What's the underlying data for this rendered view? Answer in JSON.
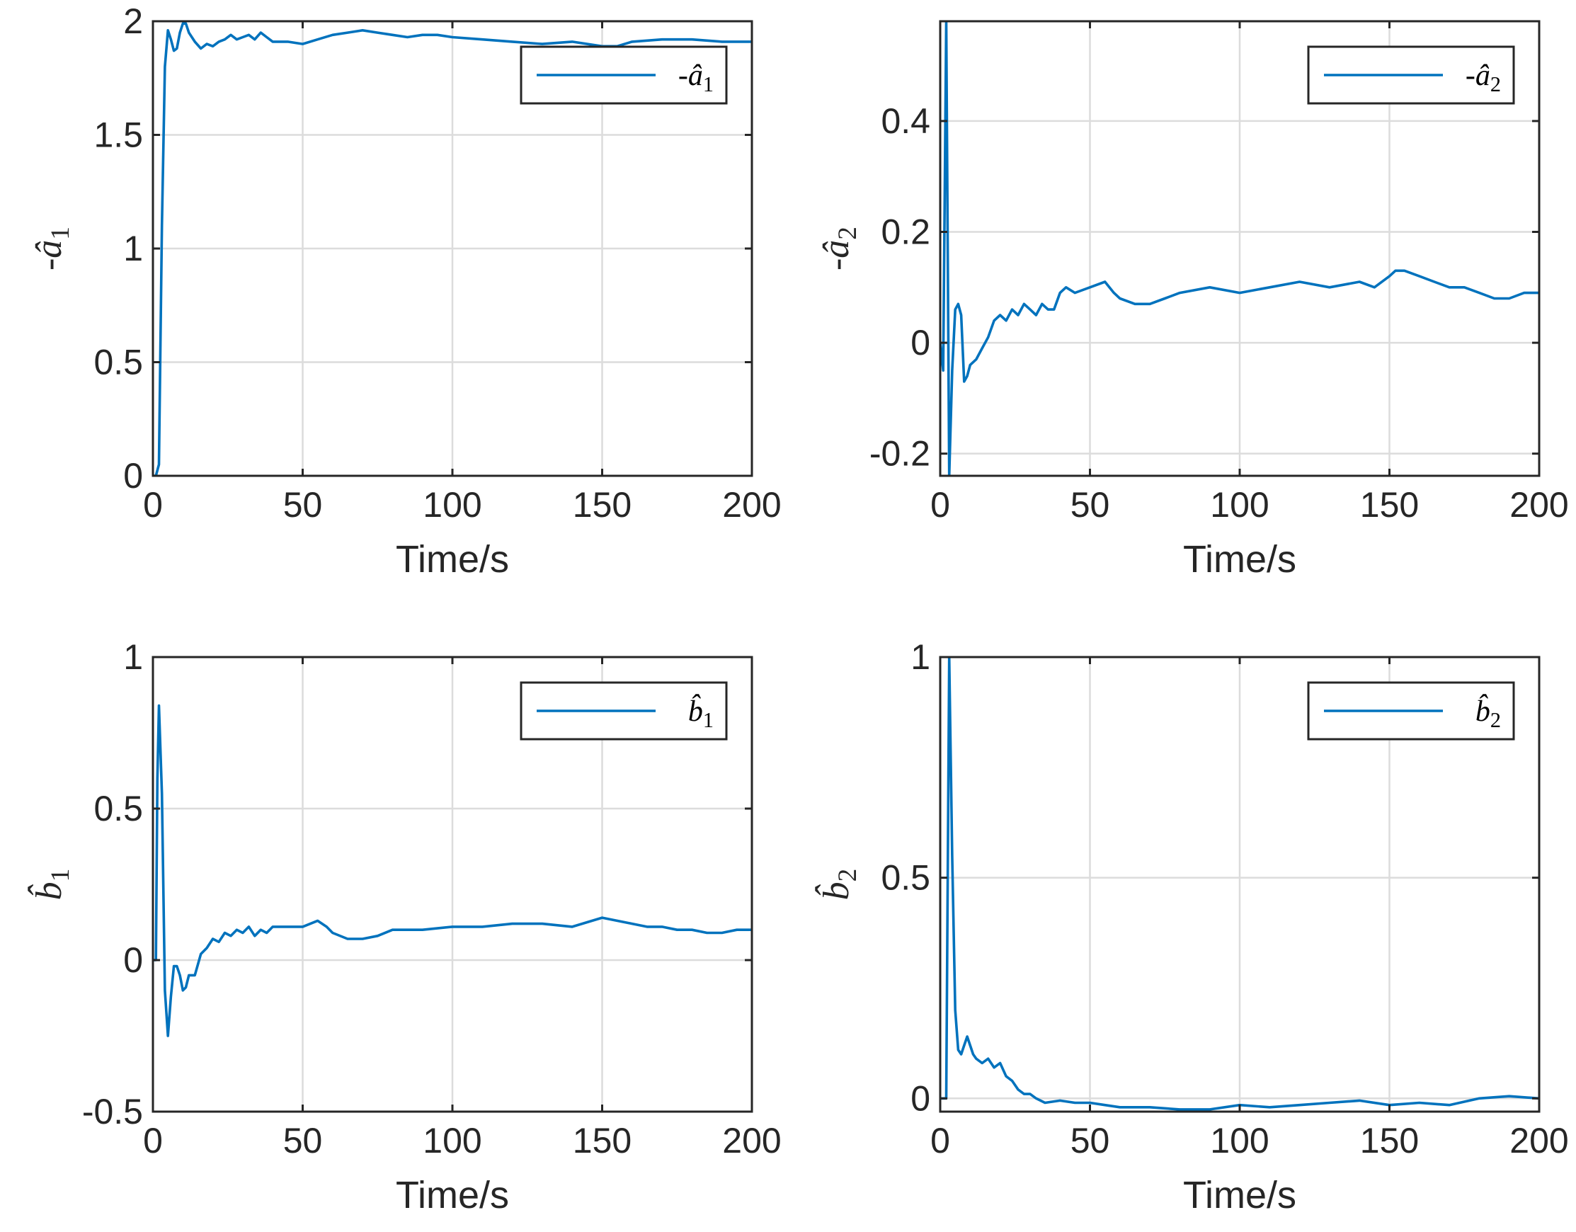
{
  "colors": {
    "series": "#0072BD",
    "axis": "#262626",
    "grid": "#dcdcdc"
  },
  "chart_data": [
    {
      "type": "line",
      "xlabel": "Time/s",
      "ylabel": "-â1",
      "legend": [
        "-â1"
      ],
      "legend_position": "top-right",
      "grid": true,
      "xlim": [
        0,
        200
      ],
      "ylim": [
        0,
        2
      ],
      "xticks": [
        0,
        50,
        100,
        150,
        200
      ],
      "xtick_labels": [
        "0",
        "50",
        "100",
        "150",
        "200"
      ],
      "yticks": [
        0,
        0.5,
        1,
        1.5,
        2
      ],
      "ytick_labels": [
        "0",
        "0.5",
        "1",
        "1.5",
        "2"
      ],
      "series": [
        {
          "x": [
            0,
            1,
            2,
            3,
            4,
            5,
            6,
            7,
            8,
            9,
            10,
            11,
            12,
            14,
            16,
            18,
            20,
            22,
            24,
            26,
            28,
            30,
            32,
            34,
            36,
            38,
            40,
            45,
            50,
            55,
            60,
            65,
            70,
            75,
            80,
            85,
            90,
            95,
            100,
            110,
            120,
            130,
            140,
            150,
            155,
            160,
            170,
            180,
            190,
            200
          ],
          "y": [
            0,
            0,
            0.05,
            1.1,
            1.8,
            1.96,
            1.92,
            1.87,
            1.88,
            1.95,
            1.99,
            1.99,
            1.95,
            1.91,
            1.88,
            1.9,
            1.89,
            1.91,
            1.92,
            1.94,
            1.92,
            1.93,
            1.94,
            1.92,
            1.95,
            1.93,
            1.91,
            1.91,
            1.9,
            1.92,
            1.94,
            1.95,
            1.96,
            1.95,
            1.94,
            1.93,
            1.94,
            1.94,
            1.93,
            1.92,
            1.91,
            1.9,
            1.91,
            1.89,
            1.89,
            1.91,
            1.92,
            1.92,
            1.91,
            1.91
          ]
        }
      ]
    },
    {
      "type": "line",
      "xlabel": "Time/s",
      "ylabel": "-â2",
      "legend": [
        "-â2"
      ],
      "legend_position": "top-right",
      "grid": true,
      "xlim": [
        0,
        200
      ],
      "ylim": [
        -0.24,
        0.58
      ],
      "xticks": [
        0,
        50,
        100,
        150,
        200
      ],
      "xtick_labels": [
        "0",
        "50",
        "100",
        "150",
        "200"
      ],
      "yticks": [
        -0.2,
        0,
        0.2,
        0.4
      ],
      "ytick_labels": [
        "-0.2",
        "0",
        "0.2",
        "0.4"
      ],
      "series": [
        {
          "x": [
            0,
            1,
            2,
            3,
            4,
            5,
            6,
            7,
            8,
            9,
            10,
            12,
            14,
            16,
            18,
            20,
            22,
            24,
            26,
            28,
            30,
            32,
            34,
            36,
            38,
            40,
            42,
            45,
            50,
            55,
            58,
            60,
            65,
            70,
            75,
            80,
            90,
            100,
            110,
            120,
            130,
            140,
            145,
            150,
            152,
            155,
            160,
            165,
            170,
            175,
            180,
            185,
            190,
            195,
            200
          ],
          "y": [
            0,
            -0.05,
            0.58,
            -0.24,
            -0.05,
            0.06,
            0.07,
            0.05,
            -0.07,
            -0.06,
            -0.04,
            -0.03,
            -0.01,
            0.01,
            0.04,
            0.05,
            0.04,
            0.06,
            0.05,
            0.07,
            0.06,
            0.05,
            0.07,
            0.06,
            0.06,
            0.09,
            0.1,
            0.09,
            0.1,
            0.11,
            0.09,
            0.08,
            0.07,
            0.07,
            0.08,
            0.09,
            0.1,
            0.09,
            0.1,
            0.11,
            0.1,
            0.11,
            0.1,
            0.12,
            0.13,
            0.13,
            0.12,
            0.11,
            0.1,
            0.1,
            0.09,
            0.08,
            0.08,
            0.09,
            0.09
          ]
        }
      ]
    },
    {
      "type": "line",
      "xlabel": "Time/s",
      "ylabel": "b̂1",
      "legend": [
        "b̂1"
      ],
      "legend_position": "top-right",
      "grid": true,
      "xlim": [
        0,
        200
      ],
      "ylim": [
        -0.5,
        1
      ],
      "xticks": [
        0,
        50,
        100,
        150,
        200
      ],
      "xtick_labels": [
        "0",
        "50",
        "100",
        "150",
        "200"
      ],
      "yticks": [
        -0.5,
        0,
        0.5,
        1
      ],
      "ytick_labels": [
        "-0.5",
        "0",
        "0.5",
        "1"
      ],
      "series": [
        {
          "x": [
            0,
            1,
            1.5,
            2,
            3,
            4,
            5,
            6,
            7,
            8,
            9,
            10,
            11,
            12,
            14,
            16,
            18,
            20,
            22,
            24,
            26,
            28,
            30,
            32,
            34,
            36,
            38,
            40,
            45,
            50,
            55,
            58,
            60,
            65,
            70,
            75,
            80,
            90,
            100,
            110,
            120,
            130,
            140,
            150,
            155,
            160,
            165,
            170,
            175,
            180,
            185,
            190,
            195,
            200
          ],
          "y": [
            0,
            0,
            0.6,
            0.84,
            0.55,
            -0.1,
            -0.25,
            -0.12,
            -0.02,
            -0.02,
            -0.05,
            -0.1,
            -0.09,
            -0.05,
            -0.05,
            0.02,
            0.04,
            0.07,
            0.06,
            0.09,
            0.08,
            0.1,
            0.09,
            0.11,
            0.08,
            0.1,
            0.09,
            0.11,
            0.11,
            0.11,
            0.13,
            0.11,
            0.09,
            0.07,
            0.07,
            0.08,
            0.1,
            0.1,
            0.11,
            0.11,
            0.12,
            0.12,
            0.11,
            0.14,
            0.13,
            0.12,
            0.11,
            0.11,
            0.1,
            0.1,
            0.09,
            0.09,
            0.1,
            0.1
          ]
        }
      ]
    },
    {
      "type": "line",
      "xlabel": "Time/s",
      "ylabel": "b̂2",
      "legend": [
        "b̂2"
      ],
      "legend_position": "top-right",
      "grid": true,
      "xlim": [
        0,
        200
      ],
      "ylim": [
        -0.03,
        1
      ],
      "xticks": [
        0,
        50,
        100,
        150,
        200
      ],
      "xtick_labels": [
        "0",
        "50",
        "100",
        "150",
        "200"
      ],
      "yticks": [
        0,
        0.5,
        1
      ],
      "ytick_labels": [
        "0",
        "0.5",
        "1"
      ],
      "series": [
        {
          "x": [
            0,
            1,
            2,
            3,
            4,
            5,
            6,
            7,
            8,
            9,
            10,
            11,
            12,
            14,
            16,
            18,
            20,
            22,
            24,
            26,
            28,
            30,
            32,
            35,
            40,
            45,
            50,
            55,
            60,
            70,
            80,
            90,
            100,
            110,
            120,
            130,
            140,
            150,
            160,
            170,
            180,
            190,
            200
          ],
          "y": [
            0,
            0,
            0,
            1.0,
            0.55,
            0.2,
            0.11,
            0.1,
            0.12,
            0.14,
            0.12,
            0.1,
            0.09,
            0.08,
            0.09,
            0.07,
            0.08,
            0.05,
            0.04,
            0.02,
            0.01,
            0.01,
            0.0,
            -0.01,
            -0.005,
            -0.01,
            -0.01,
            -0.015,
            -0.02,
            -0.02,
            -0.025,
            -0.025,
            -0.015,
            -0.02,
            -0.015,
            -0.01,
            -0.005,
            -0.015,
            -0.01,
            -0.015,
            0.0,
            0.005,
            0.0
          ]
        }
      ]
    }
  ]
}
